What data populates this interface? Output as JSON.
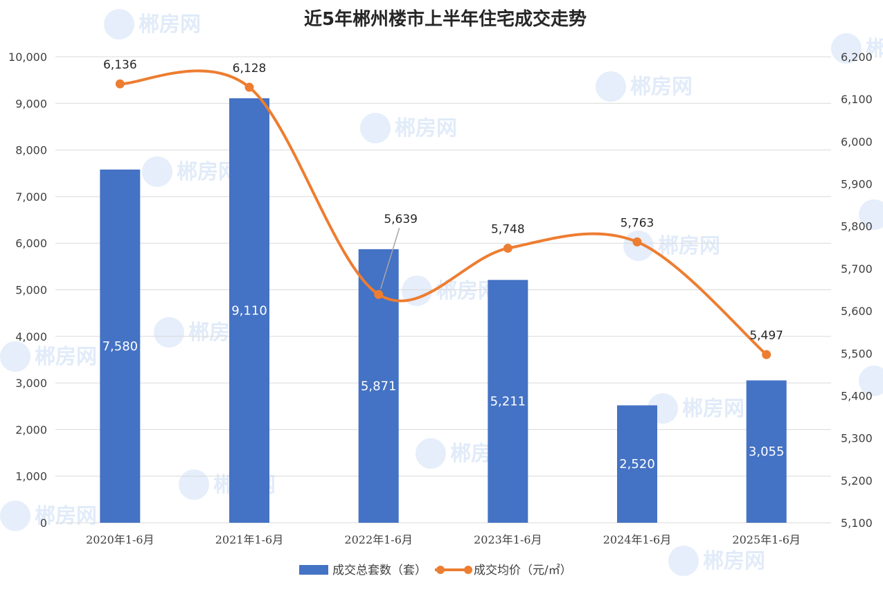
{
  "chart_data": {
    "type": "bar",
    "title": "近5年郴州楼市上半年住宅成交走势",
    "categories": [
      "2020年1-6月",
      "2021年1-6月",
      "2022年1-6月",
      "2023年1-6月",
      "2024年1-6月",
      "2025年1-6月"
    ],
    "series": [
      {
        "name": "成交总套数（套）",
        "type": "bar",
        "axis": "left",
        "color": "#4472c4",
        "values": [
          7580,
          9110,
          5871,
          5211,
          2520,
          3055
        ],
        "labels": [
          "7,580",
          "9,110",
          "5,871",
          "5,211",
          "2,520",
          "3,055"
        ]
      },
      {
        "name": "成交均价（元/㎡）",
        "type": "line",
        "smooth": true,
        "axis": "right",
        "color": "#ed7d31",
        "values": [
          6136,
          6128,
          5639,
          5748,
          5763,
          5497
        ],
        "labels": [
          "6,136",
          "6,128",
          "5,639",
          "5,748",
          "5,763",
          "5,497"
        ]
      }
    ],
    "y_left": {
      "min": 0,
      "max": 10000,
      "step": 1000,
      "tick_labels": [
        "0",
        "1,000",
        "2,000",
        "3,000",
        "4,000",
        "5,000",
        "6,000",
        "7,000",
        "8,000",
        "9,000",
        "10,000"
      ]
    },
    "y_right": {
      "min": 5100,
      "max": 6200,
      "step": 100,
      "tick_labels": [
        "5,100",
        "5,200",
        "5,300",
        "5,400",
        "5,500",
        "5,600",
        "5,700",
        "5,800",
        "5,900",
        "6,000",
        "6,100",
        "6,200"
      ]
    },
    "grid": true,
    "legend_position": "bottom",
    "watermark_text": "郴房网"
  }
}
